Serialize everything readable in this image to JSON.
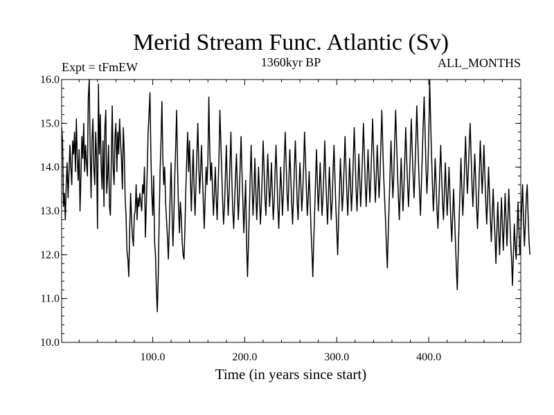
{
  "chart_data": {
    "type": "line",
    "title": "Merid Stream Func. Atlantic (Sv)",
    "subtitle_left": "Expt = tFmEW",
    "subtitle_center": "1360kyr BP",
    "subtitle_right": "ALL_MONTHS",
    "xlabel": "Time (in years since start)",
    "ylabel": "",
    "xlim": [
      1,
      500
    ],
    "ylim": [
      10.0,
      16.0
    ],
    "xticks": [
      100,
      200,
      300,
      400
    ],
    "xtick_labels": [
      "100.0",
      "200.0",
      "300.0",
      "400.0"
    ],
    "yticks": [
      10,
      11,
      12,
      13,
      14,
      15,
      16
    ],
    "ytick_labels": [
      "10.0",
      "11.0",
      "12.0",
      "13.0",
      "14.0",
      "15.0",
      "16.0"
    ],
    "grid": false,
    "series": [
      {
        "name": "tFmEW",
        "x_start": 1,
        "x_step": 1,
        "values": [
          14.9,
          14.6,
          13.1,
          13.4,
          12.8,
          13.6,
          14.1,
          13.3,
          13.9,
          14.5,
          14.0,
          13.6,
          14.6,
          14.3,
          14.8,
          13.9,
          15.1,
          14.2,
          13.7,
          14.4,
          13.0,
          13.8,
          14.7,
          14.2,
          15.0,
          13.9,
          14.5,
          14.1,
          13.8,
          15.6,
          16.0,
          14.4,
          13.3,
          14.6,
          15.1,
          14.0,
          13.6,
          14.8,
          14.2,
          12.6,
          15.9,
          14.3,
          15.2,
          14.0,
          13.5,
          14.6,
          13.1,
          14.9,
          15.3,
          13.4,
          13.8,
          14.5,
          13.1,
          12.9,
          14.2,
          15.4,
          14.0,
          13.6,
          14.7,
          15.0,
          13.9,
          14.8,
          14.3,
          15.1,
          14.6,
          14.2,
          13.5,
          14.9,
          14.4,
          13.3,
          12.9,
          12.1,
          11.9,
          11.5,
          12.6,
          13.4,
          12.8,
          12.4,
          12.2,
          12.9,
          13.0,
          13.6,
          12.8,
          13.3,
          13.1,
          13.4,
          13.2,
          13.0,
          13.6,
          13.4,
          14.0,
          12.4,
          13.1,
          13.9,
          14.8,
          15.2,
          15.7,
          14.3,
          13.4,
          12.9,
          13.8,
          12.3,
          12.0,
          11.2,
          10.7,
          11.5,
          12.8,
          13.9,
          14.6,
          15.5,
          14.2,
          13.6,
          14.0,
          13.2,
          12.8,
          12.4,
          11.9,
          12.6,
          13.4,
          14.1,
          13.0,
          12.2,
          12.9,
          13.8,
          14.5,
          15.3,
          14.0,
          13.1,
          12.5,
          13.2,
          12.9,
          12.3,
          12.0,
          11.9,
          12.6,
          13.5,
          14.2,
          14.8,
          13.9,
          14.6,
          13.7,
          13.0,
          13.8,
          14.4,
          13.5,
          12.9,
          13.6,
          14.3,
          15.0,
          14.1,
          13.4,
          13.9,
          14.5,
          13.8,
          13.2,
          12.6,
          13.3,
          14.0,
          13.6,
          14.2,
          15.6,
          14.4,
          13.7,
          14.1,
          13.5,
          12.9,
          13.4,
          14.0,
          13.3,
          12.8,
          13.5,
          14.2,
          15.3,
          14.6,
          13.9,
          13.2,
          12.7,
          13.1,
          13.8,
          14.5,
          13.6,
          12.9,
          13.4,
          14.1,
          14.8,
          13.7,
          13.0,
          12.6,
          13.2,
          13.8,
          14.3,
          13.5,
          12.8,
          13.3,
          14.0,
          14.7,
          13.9,
          13.2,
          12.5,
          13.1,
          13.7,
          12.3,
          11.5,
          12.2,
          13.0,
          13.8,
          14.5,
          13.6,
          12.9,
          13.4,
          14.2,
          13.5,
          12.8,
          13.3,
          14.0,
          13.4,
          12.7,
          13.1,
          13.8,
          14.6,
          14.0,
          13.3,
          12.9,
          13.6,
          14.3,
          13.7,
          13.1,
          13.5,
          14.1,
          13.4,
          12.8,
          13.2,
          13.9,
          14.5,
          13.8,
          13.1,
          12.6,
          13.3,
          14.0,
          13.5,
          12.9,
          13.4,
          14.2,
          14.8,
          14.1,
          13.4,
          13.0,
          13.7,
          14.4,
          13.8,
          13.2,
          12.7,
          13.3,
          14.0,
          14.6,
          13.9,
          13.2,
          12.8,
          13.5,
          14.1,
          13.6,
          13.0,
          13.4,
          14.0,
          14.8,
          14.2,
          13.5,
          12.9,
          13.3,
          13.9,
          13.3,
          12.6,
          12.1,
          11.5,
          12.3,
          13.0,
          13.7,
          14.4,
          13.6,
          13.0,
          13.5,
          14.1,
          13.5,
          12.9,
          13.3,
          13.9,
          14.6,
          13.8,
          13.2,
          12.7,
          13.4,
          14.0,
          13.4,
          12.8,
          13.2,
          13.9,
          14.5,
          13.8,
          13.1,
          12.6,
          12.0,
          12.8,
          13.5,
          14.2,
          13.6,
          13.0,
          13.4,
          14.0,
          14.7,
          14.0,
          13.4,
          12.9,
          13.5,
          14.2,
          13.6,
          13.0,
          13.5,
          14.2,
          14.9,
          14.2,
          13.5,
          13.0,
          13.6,
          14.3,
          13.7,
          13.1,
          13.6,
          14.3,
          15.0,
          14.3,
          13.6,
          13.1,
          13.7,
          14.4,
          13.8,
          13.2,
          13.7,
          14.4,
          15.1,
          14.4,
          13.7,
          13.2,
          13.8,
          14.5,
          13.9,
          13.3,
          13.8,
          14.5,
          15.3,
          14.5,
          13.8,
          13.3,
          12.8,
          12.2,
          11.7,
          12.5,
          13.2,
          13.9,
          14.6,
          13.9,
          13.3,
          13.8,
          14.6,
          15.3,
          14.6,
          13.9,
          13.3,
          12.8,
          13.5,
          14.2,
          13.6,
          13.0,
          13.5,
          14.2,
          14.9,
          14.2,
          13.6,
          13.1,
          13.7,
          14.4,
          15.1,
          14.4,
          13.8,
          13.3,
          13.9,
          14.6,
          15.4,
          14.7,
          14.0,
          13.4,
          12.9,
          13.6,
          14.3,
          15.0,
          15.6,
          14.8,
          14.0,
          13.4,
          13.9,
          14.7,
          16.0,
          15.1,
          14.3,
          13.6,
          13.0,
          13.5,
          14.2,
          13.6,
          13.0,
          12.6,
          13.2,
          13.9,
          14.5,
          13.8,
          13.2,
          12.8,
          13.4,
          14.1,
          13.5,
          12.9,
          13.4,
          14.0,
          13.4,
          12.8,
          12.3,
          12.9,
          13.5,
          12.9,
          12.3,
          11.7,
          11.2,
          12.0,
          12.8,
          13.5,
          14.2,
          13.5,
          12.9,
          13.4,
          14.0,
          14.7,
          14.0,
          13.4,
          13.9,
          14.5,
          15.0,
          14.3,
          13.6,
          13.1,
          13.7,
          14.3,
          13.7,
          13.1,
          12.6,
          13.2,
          13.9,
          14.6,
          14.0,
          13.4,
          13.9,
          14.5,
          13.8,
          13.2,
          12.7,
          13.3,
          14.0,
          13.4,
          12.8,
          12.3,
          12.9,
          13.5,
          12.9,
          12.4,
          11.8,
          12.5,
          13.2,
          12.6,
          12.0,
          12.6,
          13.3,
          12.7,
          12.1,
          12.7,
          13.4,
          12.8,
          12.2,
          12.8,
          13.5,
          12.9,
          12.3,
          11.9,
          11.3,
          12.0,
          12.7,
          12.2,
          11.9,
          12.5,
          13.2,
          12.6,
          12.0,
          12.4,
          13.1,
          13.6,
          12.8,
          12.2,
          12.7,
          13.3,
          13.6,
          12.9,
          12.3,
          12.0
        ]
      }
    ]
  }
}
